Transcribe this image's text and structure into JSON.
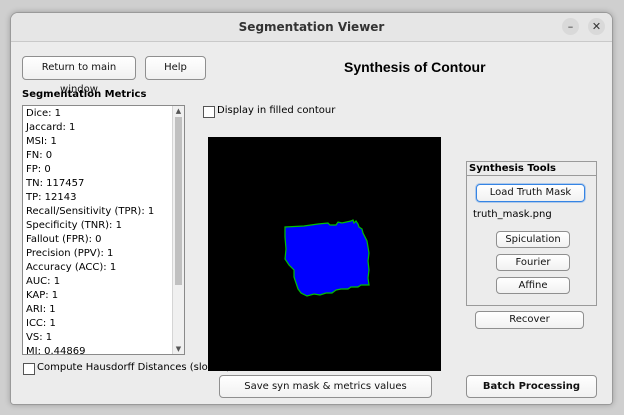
{
  "window": {
    "title": "Segmentation Viewer",
    "minimize_glyph": "–",
    "close_glyph": "✕"
  },
  "toolbar": {
    "return_label": "Return to main window",
    "help_label": "Help"
  },
  "page_heading": "Synthesis of Contour",
  "metrics": {
    "title": "Segmentation Metrics",
    "items": [
      "Dice: 1",
      "Jaccard: 1",
      "MSI: 1",
      "FN: 0",
      "FP: 0",
      "TN: 117457",
      "TP: 12143",
      "Recall/Sensitivity (TPR): 1",
      "Specificity (TNR): 1",
      "Fallout (FPR): 0",
      "Precision (PPV): 1",
      "Accuracy (ACC): 1",
      "AUC: 1",
      "KAP: 1",
      "ARI: 1",
      "ICC: 1",
      "VS: 1",
      "MI: 0.44869"
    ]
  },
  "display_filled_label": "Display in filled contour",
  "hausdorff_label": "Compute Hausdorff Distances (slower)",
  "synthesis_tools": {
    "title": "Synthesis Tools",
    "load_label": "Load Truth Mask",
    "filename": "truth_mask.png",
    "spiculation_label": "Spiculation",
    "fourier_label": "Fourier",
    "affine_label": "Affine"
  },
  "recover_label": "Recover",
  "save_label": "Save syn mask & metrics values",
  "batch_label": "Batch Processing",
  "colors": {
    "mask_fill": "#0000ff",
    "contour": "#00c000",
    "canvas_bg": "#000000",
    "load_button_border": "#3584e4"
  }
}
